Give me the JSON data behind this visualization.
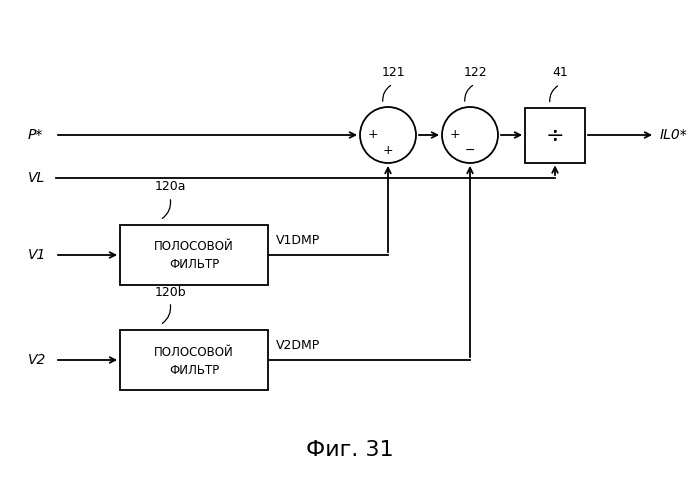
{
  "bg_color": "#ffffff",
  "line_color": "#000000",
  "fig_caption": "Фиг. 31",
  "filter1_text_line1": "ПОЛОСОВОЙ",
  "filter1_text_line2": "ФИЛЬТР",
  "label_Pstar": "P*",
  "label_VL": "VL",
  "label_V1": "V1",
  "label_V2": "V2",
  "label_ILO": "IL0*",
  "label_V1DMP": "V1DMP",
  "label_V2DMP": "V2DMP",
  "label_121": "121",
  "label_122": "122",
  "label_41": "41",
  "label_120a": "120a",
  "label_120b": "120b"
}
